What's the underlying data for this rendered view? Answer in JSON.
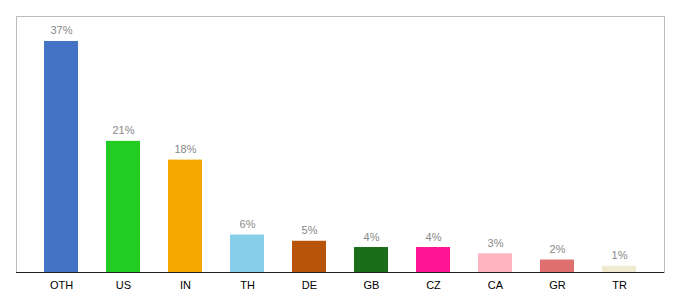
{
  "chart_data": {
    "type": "bar",
    "categories": [
      "OTH",
      "US",
      "IN",
      "TH",
      "DE",
      "GB",
      "CZ",
      "CA",
      "GR",
      "TR"
    ],
    "values": [
      37,
      21,
      18,
      6,
      5,
      4,
      4,
      3,
      2,
      1
    ],
    "value_labels": [
      "37%",
      "21%",
      "18%",
      "6%",
      "5%",
      "4%",
      "4%",
      "3%",
      "2%",
      "1%"
    ],
    "colors": [
      "#4472c4",
      "#22cc22",
      "#f5a800",
      "#87ceeb",
      "#b8540a",
      "#1a6e1a",
      "#ff1493",
      "#ffb6c1",
      "#e07070",
      "#f0ead0"
    ],
    "ylim": [
      0,
      41
    ],
    "data_labels": true,
    "tick_labels": "x"
  }
}
